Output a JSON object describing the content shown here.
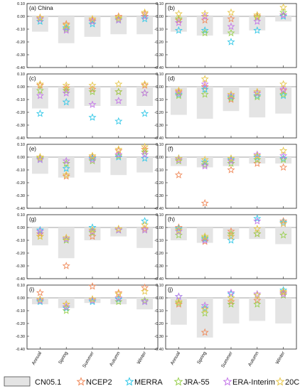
{
  "legend": [
    {
      "key": "CN05.1",
      "label": "CN05.1",
      "kind": "bar"
    },
    {
      "key": "NCEP2",
      "label": "NCEP2",
      "kind": "star"
    },
    {
      "key": "MERRA",
      "label": "MERRA",
      "kind": "star"
    },
    {
      "key": "JRA55",
      "label": "JRA-55",
      "kind": "star"
    },
    {
      "key": "ERAI",
      "label": "ERA-Interim",
      "kind": "star"
    },
    {
      "key": "20CR",
      "label": "20CR",
      "kind": "star"
    }
  ],
  "colors": {
    "CN05.1": "#e4e4e4",
    "NCEP2": "#f08a5a",
    "MERRA": "#33c8e8",
    "JRA55": "#9ad050",
    "ERAI": "#c477e8",
    "20CR": "#e6c64a"
  },
  "chart_data": {
    "type": "bar",
    "layout": "5 rows x 2 columns of panels",
    "categories": [
      "Annual",
      "Spring",
      "Summer",
      "Autumn",
      "Winter"
    ],
    "ylim": [
      -0.4,
      0.1
    ],
    "yticks": [
      "0.10",
      "0.00",
      "-0.10",
      "-0.20",
      "-0.30",
      "-0.40"
    ],
    "grid": false,
    "legend_position": "bottom",
    "bar_series": "CN05.1",
    "star_series": [
      "NCEP2",
      "MERRA",
      "JRA55",
      "ERAI",
      "20CR"
    ],
    "panels": [
      {
        "label": "(a) China",
        "bars": [
          -0.12,
          -0.21,
          -0.16,
          -0.14,
          -0.14
        ],
        "stars": {
          "NCEP2": [
            -0.01,
            -0.06,
            -0.03,
            0.0,
            0.02
          ],
          "MERRA": [
            -0.04,
            -0.09,
            -0.06,
            -0.03,
            -0.02
          ],
          "JRA55": [
            -0.02,
            -0.1,
            -0.04,
            -0.02,
            0.0
          ],
          "ERAI": [
            -0.02,
            -0.11,
            -0.04,
            -0.03,
            0.0
          ],
          "20CR": [
            -0.01,
            -0.07,
            -0.02,
            -0.01,
            0.03
          ]
        }
      },
      {
        "label": "(b)",
        "bars": [
          -0.12,
          -0.15,
          -0.14,
          -0.11,
          -0.04
        ],
        "stars": {
          "NCEP2": [
            -0.03,
            -0.03,
            -0.02,
            0.0,
            0.01
          ],
          "MERRA": [
            -0.11,
            -0.11,
            -0.2,
            -0.11,
            0.0
          ],
          "JRA55": [
            -0.02,
            -0.13,
            -0.13,
            -0.01,
            0.03
          ],
          "ERAI": [
            -0.05,
            0.0,
            -0.08,
            -0.04,
            0.01
          ],
          "20CR": [
            0.02,
            0.02,
            0.03,
            0.01,
            0.07
          ]
        }
      },
      {
        "label": "(c)",
        "bars": [
          -0.17,
          -0.17,
          -0.15,
          -0.15,
          -0.15
        ],
        "stars": {
          "NCEP2": [
            0.01,
            -0.01,
            -0.02,
            -0.04,
            0.01
          ],
          "MERRA": [
            -0.21,
            -0.12,
            -0.24,
            -0.27,
            -0.21
          ],
          "JRA55": [
            -0.03,
            -0.03,
            -0.04,
            -0.04,
            -0.05
          ],
          "ERAI": [
            -0.07,
            -0.05,
            -0.14,
            -0.11,
            -0.05
          ],
          "20CR": [
            0.02,
            0.01,
            0.01,
            0.02,
            0.02
          ]
        }
      },
      {
        "label": "(d)",
        "bars": [
          -0.22,
          -0.25,
          -0.19,
          -0.24,
          -0.21
        ],
        "stars": {
          "NCEP2": [
            -0.04,
            0.0,
            -0.1,
            -0.05,
            -0.03
          ],
          "MERRA": [
            -0.06,
            -0.02,
            -0.08,
            -0.07,
            -0.07
          ],
          "JRA55": [
            -0.07,
            -0.06,
            -0.09,
            -0.08,
            -0.06
          ],
          "ERAI": [
            -0.05,
            0.02,
            -0.07,
            -0.05,
            -0.02
          ],
          "20CR": [
            -0.03,
            0.06,
            -0.06,
            -0.04,
            0.02
          ]
        }
      },
      {
        "label": "(e)",
        "bars": [
          -0.13,
          -0.16,
          -0.12,
          -0.14,
          -0.12
        ],
        "stars": {
          "NCEP2": [
            0.0,
            -0.15,
            0.0,
            0.05,
            0.06
          ],
          "MERRA": [
            -0.02,
            -0.09,
            -0.01,
            0.0,
            -0.01
          ],
          "JRA55": [
            -0.01,
            -0.05,
            -0.03,
            0.01,
            0.04
          ],
          "ERAI": [
            -0.02,
            -0.03,
            -0.02,
            0.02,
            0.02
          ],
          "20CR": [
            0.0,
            -0.14,
            0.01,
            0.06,
            0.08
          ]
        }
      },
      {
        "label": "(f)",
        "bars": [
          -0.07,
          -0.08,
          -0.07,
          -0.05,
          -0.05
        ],
        "stars": {
          "NCEP2": [
            -0.14,
            -0.36,
            -0.1,
            -0.05,
            -0.08
          ],
          "MERRA": [
            -0.01,
            -0.04,
            -0.02,
            0.0,
            -0.01
          ],
          "JRA55": [
            -0.03,
            -0.06,
            -0.05,
            -0.02,
            -0.02
          ],
          "ERAI": [
            -0.02,
            -0.07,
            -0.03,
            0.02,
            0.01
          ],
          "20CR": [
            -0.01,
            -0.02,
            -0.01,
            0.01,
            0.05
          ]
        }
      },
      {
        "label": "(g)",
        "bars": [
          -0.14,
          -0.24,
          -0.1,
          -0.07,
          -0.16
        ],
        "stars": {
          "NCEP2": [
            -0.05,
            -0.3,
            -0.07,
            -0.02,
            -0.01
          ],
          "MERRA": [
            -0.02,
            -0.09,
            0.0,
            -0.02,
            0.05
          ],
          "JRA55": [
            -0.07,
            -0.1,
            -0.04,
            -0.02,
            -0.02
          ],
          "ERAI": [
            -0.03,
            -0.09,
            -0.03,
            -0.02,
            -0.02
          ],
          "20CR": [
            -0.07,
            -0.08,
            -0.02,
            -0.01,
            0.02
          ]
        }
      },
      {
        "label": "(h)",
        "bars": [
          -0.1,
          -0.12,
          -0.09,
          -0.09,
          -0.13
        ],
        "stars": {
          "NCEP2": [
            0.0,
            -0.11,
            -0.03,
            -0.05,
            0.05
          ],
          "MERRA": [
            -0.01,
            -0.09,
            -0.1,
            0.07,
            0.04
          ],
          "JRA55": [
            -0.06,
            -0.08,
            -0.05,
            -0.05,
            -0.06
          ],
          "ERAI": [
            -0.03,
            -0.1,
            -0.07,
            0.05,
            0.03
          ],
          "20CR": [
            -0.02,
            -0.07,
            -0.07,
            -0.01,
            0.03
          ]
        }
      },
      {
        "label": "(i)",
        "bars": [
          -0.05,
          -0.08,
          -0.04,
          -0.05,
          -0.09
        ],
        "stars": {
          "NCEP2": [
            0.04,
            -0.05,
            0.09,
            0.04,
            0.08
          ],
          "MERRA": [
            -0.03,
            -0.08,
            -0.03,
            -0.01,
            -0.03
          ],
          "JRA55": [
            -0.02,
            -0.1,
            -0.02,
            -0.03,
            -0.02
          ],
          "ERAI": [
            -0.02,
            -0.07,
            -0.02,
            0.0,
            -0.03
          ],
          "20CR": [
            -0.01,
            -0.05,
            -0.01,
            0.03,
            0.05
          ]
        }
      },
      {
        "label": "(j)",
        "bars": [
          -0.21,
          -0.31,
          -0.2,
          -0.18,
          -0.2
        ],
        "stars": {
          "NCEP2": [
            -0.05,
            -0.27,
            -0.03,
            -0.02,
            0.04
          ],
          "MERRA": [
            0.01,
            -0.08,
            0.03,
            0.02,
            0.06
          ],
          "JRA55": [
            -0.04,
            -0.12,
            -0.05,
            -0.05,
            0.02
          ],
          "ERAI": [
            0.01,
            -0.06,
            0.04,
            0.03,
            0.03
          ],
          "20CR": [
            -0.03,
            -0.09,
            0.0,
            0.02,
            0.05
          ]
        }
      }
    ]
  }
}
